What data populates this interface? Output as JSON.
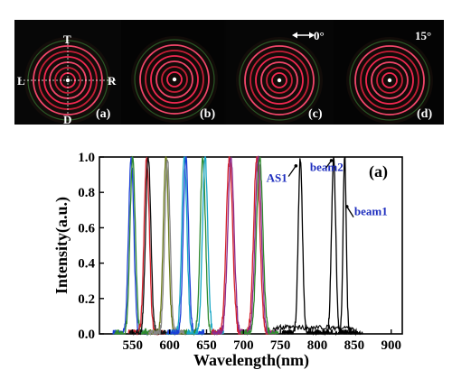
{
  "top_strip": {
    "panels": [
      {
        "label": "(a)"
      },
      {
        "label": "(b)"
      },
      {
        "label": "(c)",
        "corner_text": "0°",
        "arrow_icon": "double-arrow-icon"
      },
      {
        "label": "(d)",
        "corner_text": "15°"
      }
    ],
    "crosshair_labels": {
      "top": "T",
      "bottom": "D",
      "left": "L",
      "right": "R"
    },
    "ring_colors": [
      "#ff2a55",
      "#ff4a70",
      "#d0203a",
      "#3a8a3a"
    ]
  },
  "chart_data": {
    "type": "line",
    "panel_label": "(a)",
    "xlabel": "Wavelength(nm)",
    "ylabel": "Intensity(a.u.)",
    "xlim": [
      505,
      915
    ],
    "ylim": [
      0,
      1.0
    ],
    "xticks": [
      550,
      600,
      650,
      700,
      750,
      800,
      850,
      900
    ],
    "yticks": [
      0.0,
      0.2,
      0.4,
      0.6,
      0.8,
      1.0
    ],
    "ytick_labels": [
      "0.0",
      "0.2",
      "0.4",
      "0.6",
      "0.8",
      "1.0"
    ],
    "grid": false,
    "series_colors": [
      "#1a3fd6",
      "#d4202a",
      "#2f8a2f",
      "#888888",
      "#17a6c6",
      "#8b2a8b",
      "#6a7a1a",
      "#000000"
    ],
    "series": [
      {
        "peak": 548,
        "width": 5,
        "color": "#1a3fd6"
      },
      {
        "peak": 550,
        "width": 5,
        "color": "#2f8a2f"
      },
      {
        "peak": 569,
        "width": 5,
        "color": "#d4202a"
      },
      {
        "peak": 571,
        "width": 5,
        "color": "#111111"
      },
      {
        "peak": 595,
        "width": 5,
        "color": "#6a7a1a"
      },
      {
        "peak": 597,
        "width": 5,
        "color": "#888888"
      },
      {
        "peak": 620,
        "width": 5,
        "color": "#17a6c6"
      },
      {
        "peak": 622,
        "width": 5,
        "color": "#1a3fd6"
      },
      {
        "peak": 645,
        "width": 5,
        "color": "#2f8a2f"
      },
      {
        "peak": 648,
        "width": 5,
        "color": "#17a6c6"
      },
      {
        "peak": 681,
        "width": 6,
        "color": "#d4202a"
      },
      {
        "peak": 683,
        "width": 6,
        "color": "#8b2a8b"
      },
      {
        "peak": 718,
        "width": 6,
        "color": "#d4202a"
      },
      {
        "peak": 720,
        "width": 6,
        "color": "#8b2a8b"
      },
      {
        "peak": 722,
        "width": 6,
        "color": "#2f8a2f"
      },
      {
        "peak": 777,
        "width": 4,
        "color": "#000000",
        "name": "AS1"
      },
      {
        "peak": 822,
        "width": 4,
        "color": "#000000",
        "name": "beam2"
      },
      {
        "peak": 837,
        "width": 3,
        "color": "#000000",
        "name": "beam1"
      }
    ],
    "annotations": [
      {
        "text": "AS1",
        "x": 731,
        "y": 0.86
      },
      {
        "text": "beam2",
        "x": 790,
        "y": 0.92
      },
      {
        "text": "beam1",
        "x": 850,
        "y": 0.67
      }
    ]
  }
}
